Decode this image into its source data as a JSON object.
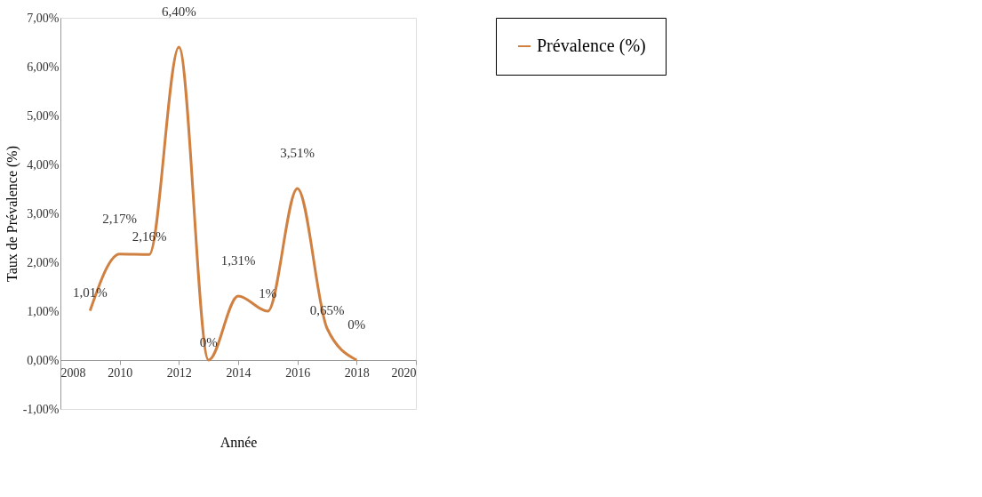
{
  "chart_data": {
    "type": "line",
    "xlabel": "Année",
    "ylabel": "Taux de Prévalence (%)",
    "x": [
      2009,
      2010,
      2011,
      2012,
      2013,
      2014,
      2015,
      2016,
      2017,
      2018
    ],
    "series": [
      {
        "name": "Prévalence (%)",
        "color": "#d08040",
        "values": [
          1.01,
          2.17,
          2.16,
          6.4,
          0,
          1.31,
          1,
          3.51,
          0.65,
          0
        ],
        "value_labels": [
          "1,01%",
          "2,17%",
          "2,16%",
          "6,40%",
          "0%",
          "1,31%",
          "1%",
          "3,51%",
          "0,65%",
          "0%"
        ]
      }
    ],
    "xlim": [
      2008,
      2020
    ],
    "xticks": [
      2008,
      2010,
      2012,
      2014,
      2016,
      2018,
      2020
    ],
    "ylim": [
      -1,
      7
    ],
    "yticks": [
      {
        "value": -1,
        "label": "-1,00%"
      },
      {
        "value": 0,
        "label": "0,00%"
      },
      {
        "value": 1,
        "label": "1,00%"
      },
      {
        "value": 2,
        "label": "2,00%"
      },
      {
        "value": 3,
        "label": "3,00%"
      },
      {
        "value": 4,
        "label": "4,00%"
      },
      {
        "value": 5,
        "label": "5,00%"
      },
      {
        "value": 6,
        "label": "6,00%"
      },
      {
        "value": 7,
        "label": "7,00%"
      }
    ],
    "grid": false,
    "legend": "top right",
    "marker": "none",
    "line_style": "solid"
  }
}
